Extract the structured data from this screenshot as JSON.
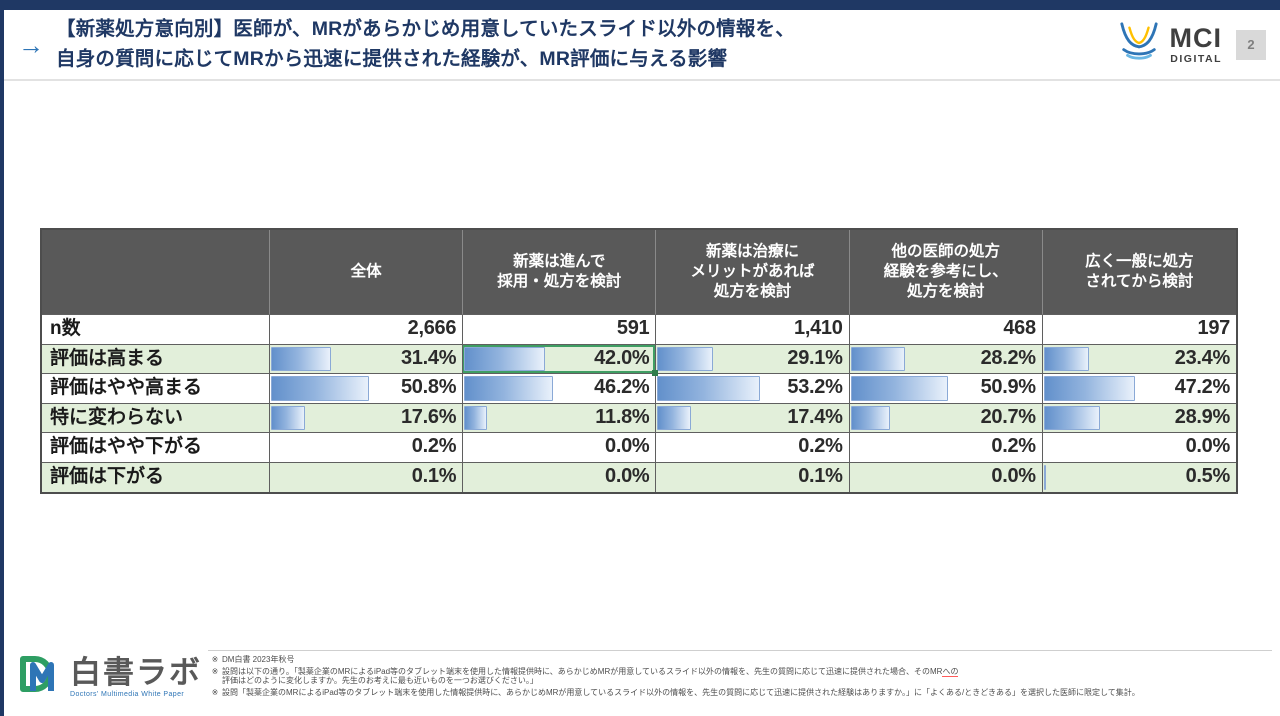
{
  "slide": {
    "title_line1": "【新薬処方意向別】医師が、MRがあらかじめ用意していたスライド以外の情報を、",
    "title_line2": "自身の質問に応じてMRから迅速に提供された経験が、MR評価に与える影響",
    "arrow": "→",
    "page_number": "2"
  },
  "header_logo": {
    "name": "MCI",
    "sub": "DIGITAL"
  },
  "chart_data": {
    "type": "table",
    "title": "新薬処方意向別：MRからの迅速な追加情報提供経験がMR評価に与える影響",
    "columns": [
      "",
      "全体",
      "新薬は進んで\n採用・処方を検討",
      "新薬は治療に\nメリットがあれば\n処方を検討",
      "他の医師の処方\n経験を参考にし、\n処方を検討",
      "広く一般に処方\nされてから検討"
    ],
    "n_row": {
      "label": "n数",
      "display": [
        "2,666",
        "591",
        "1,410",
        "468",
        "197"
      ],
      "values": [
        2666,
        591,
        1410,
        468,
        197
      ]
    },
    "rows": [
      {
        "label": "評価は高まる",
        "values": [
          31.4,
          42.0,
          29.1,
          28.2,
          23.4
        ],
        "display": [
          "31.4%",
          "42.0%",
          "29.1%",
          "28.2%",
          "23.4%"
        ]
      },
      {
        "label": "評価はやや高まる",
        "values": [
          50.8,
          46.2,
          53.2,
          50.9,
          47.2
        ],
        "display": [
          "50.8%",
          "46.2%",
          "53.2%",
          "50.9%",
          "47.2%"
        ]
      },
      {
        "label": "特に変わらない",
        "values": [
          17.6,
          11.8,
          17.4,
          20.7,
          28.9
        ],
        "display": [
          "17.6%",
          "11.8%",
          "17.4%",
          "20.7%",
          "28.9%"
        ]
      },
      {
        "label": "評価はやや下がる",
        "values": [
          0.2,
          0.0,
          0.2,
          0.2,
          0.0
        ],
        "display": [
          "0.2%",
          "0.0%",
          "0.2%",
          "0.2%",
          "0.0%"
        ]
      },
      {
        "label": "評価は下がる",
        "values": [
          0.1,
          0.0,
          0.1,
          0.0,
          0.5
        ],
        "display": [
          "0.1%",
          "0.0%",
          "0.1%",
          "0.0%",
          "0.5%"
        ]
      }
    ],
    "highlight_cell": {
      "row": "評価は高まる",
      "column": "新薬は進んで採用・処方を検討",
      "value": "42.0%"
    },
    "bar_color": "#6290cb",
    "row_alt_color": "#e2efda",
    "header_bg": "#595959",
    "bar_scale_max": 100,
    "legend_position": "none",
    "grid": true
  },
  "footer": {
    "logo_text": "白書ラボ",
    "logo_tagline": "Doctors' Multimedia White Paper",
    "footnote_marker": "※",
    "footnotes": {
      "f1": "DM白書 2023年秋号",
      "f2_pre": "設問は以下の通り。「製薬企業のMRによるiPad等のタブレット端末を使用した情報提供時に、あらかじめMRが用意しているスライド以外の情報を、先生の質問に応じて迅速に提供された場合、そのMR",
      "f2_marked": "への",
      "f2_post": "評価はどのように変化しますか。先生のお考えに最も近いものを一つお選びください。」",
      "f3": "設問「製薬企業のMRによるiPad等のタブレット端末を使用した情報提供時に、あらかじめMRが用意しているスライド以外の情報を、先生の質問に応じて迅速に提供された経験はありますか。」に「よくある/ときどきある」を選択した医師に限定して集計。"
    }
  }
}
